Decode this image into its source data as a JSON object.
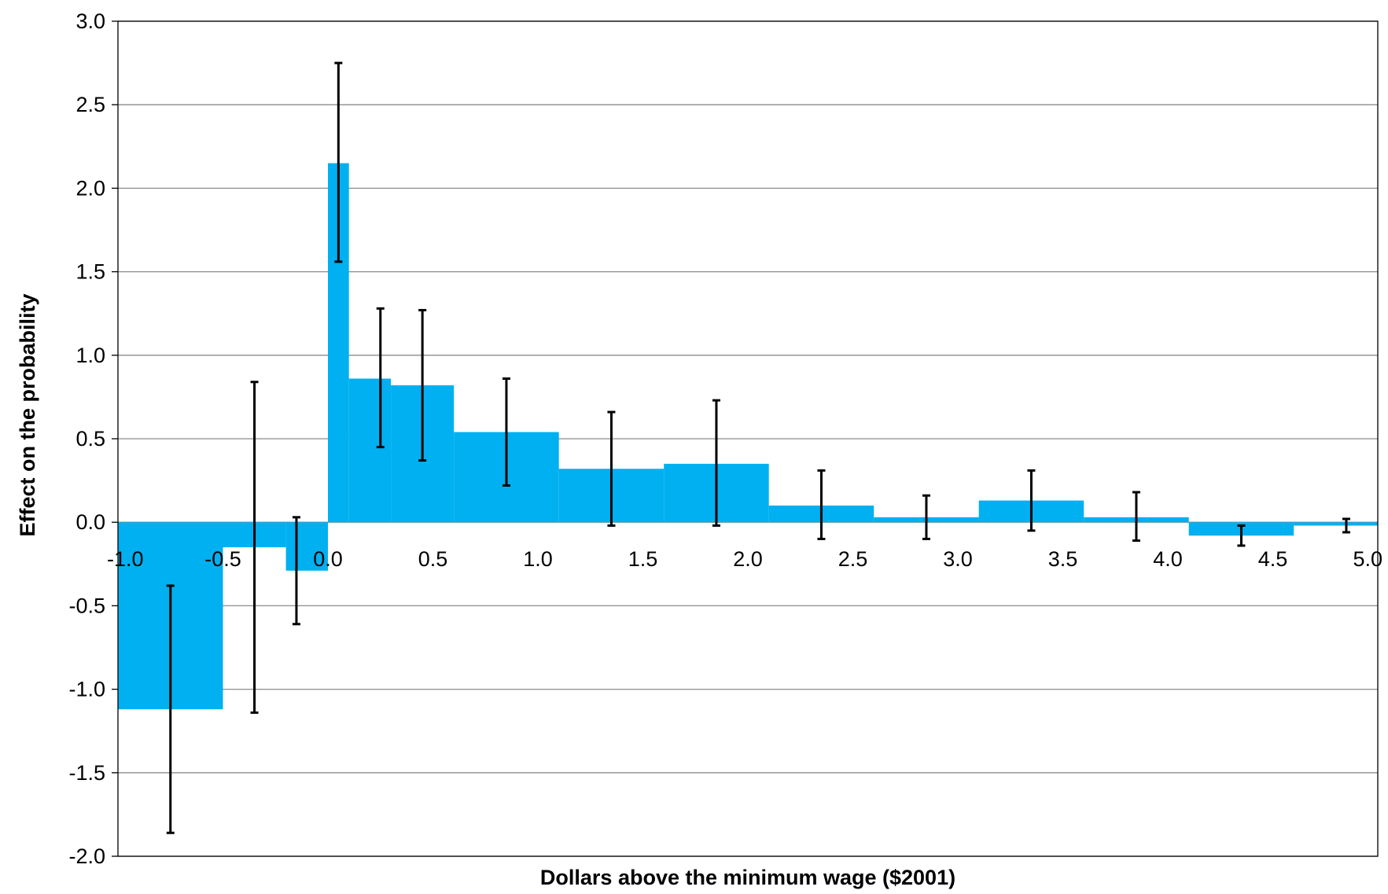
{
  "chart_data": {
    "type": "bar",
    "title": "",
    "xlabel": "Dollars above the minimum wage ($2001)",
    "ylabel": "Effect on the probability",
    "xlim": [
      -1.0,
      5.0
    ],
    "ylim": [
      -2.0,
      3.0
    ],
    "x_ticks": [
      "-1.0",
      "-0.5",
      "0.0",
      "0.5",
      "1.0",
      "1.5",
      "2.0",
      "2.5",
      "3.0",
      "3.5",
      "4.0",
      "4.5",
      "5.0"
    ],
    "y_ticks": [
      "3.0",
      "2.5",
      "2.0",
      "1.5",
      "1.0",
      "0.5",
      "0.0",
      "-0.5",
      "-1.0",
      "-1.5",
      "-2.0"
    ],
    "grid": true,
    "bar_color": "#00B0F0",
    "errorbar_color": "#000000",
    "bars": [
      {
        "x0": -1.0,
        "x1": -0.5,
        "value": -1.12,
        "err_x": -0.75,
        "ci": [
          -1.86,
          -0.38
        ]
      },
      {
        "x0": -0.5,
        "x1": -0.2,
        "value": -0.15,
        "err_x": -0.35,
        "ci": [
          -1.14,
          0.84
        ]
      },
      {
        "x0": -0.2,
        "x1": 0.0,
        "value": -0.29,
        "err_x": -0.15,
        "ci": [
          -0.61,
          0.03
        ]
      },
      {
        "x0": 0.0,
        "x1": 0.1,
        "value": 2.15,
        "err_x": 0.05,
        "ci": [
          1.56,
          2.75
        ]
      },
      {
        "x0": 0.1,
        "x1": 0.3,
        "value": 0.86,
        "err_x": 0.25,
        "ci": [
          0.45,
          1.28
        ]
      },
      {
        "x0": 0.3,
        "x1": 0.6,
        "value": 0.82,
        "err_x": 0.45,
        "ci": [
          0.37,
          1.27
        ]
      },
      {
        "x0": 0.6,
        "x1": 1.1,
        "value": 0.54,
        "err_x": 0.85,
        "ci": [
          0.22,
          0.86
        ]
      },
      {
        "x0": 1.1,
        "x1": 1.6,
        "value": 0.32,
        "err_x": 1.35,
        "ci": [
          -0.02,
          0.66
        ]
      },
      {
        "x0": 1.6,
        "x1": 2.1,
        "value": 0.35,
        "err_x": 1.85,
        "ci": [
          -0.02,
          0.73
        ]
      },
      {
        "x0": 2.1,
        "x1": 2.6,
        "value": 0.1,
        "err_x": 2.35,
        "ci": [
          -0.1,
          0.31
        ]
      },
      {
        "x0": 2.6,
        "x1": 3.1,
        "value": 0.03,
        "err_x": 2.85,
        "ci": [
          -0.1,
          0.16
        ]
      },
      {
        "x0": 3.1,
        "x1": 3.6,
        "value": 0.13,
        "err_x": 3.35,
        "ci": [
          -0.05,
          0.31
        ]
      },
      {
        "x0": 3.6,
        "x1": 4.1,
        "value": 0.03,
        "err_x": 3.85,
        "ci": [
          -0.11,
          0.18
        ]
      },
      {
        "x0": 4.1,
        "x1": 4.6,
        "value": -0.08,
        "err_x": 4.35,
        "ci": [
          -0.14,
          -0.02
        ]
      },
      {
        "x0": 4.6,
        "x1": 5.1,
        "value": -0.02,
        "err_x": 4.85,
        "ci": [
          -0.06,
          0.02
        ]
      }
    ]
  }
}
